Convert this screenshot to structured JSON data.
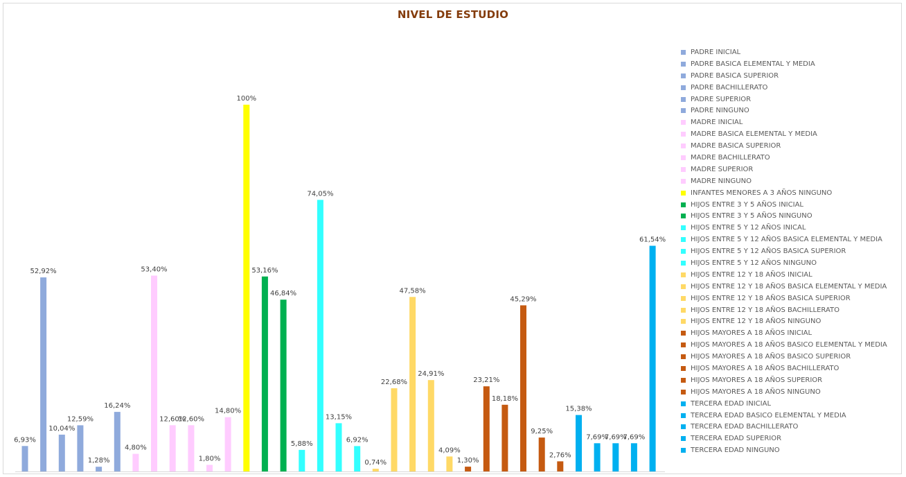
{
  "chart_data": {
    "type": "bar",
    "title": "NIVEL DE ESTUDIO",
    "categories": [
      "PADRE INICIAL",
      "PADRE BASICA ELEMENTAL Y MEDIA",
      "PADRE BASICA SUPERIOR",
      "PADRE BACHILLERATO",
      "PADRE SUPERIOR",
      "PADRE NINGUNO",
      "MADRE INICIAL",
      "MADRE BASICA ELEMENTAL Y MEDIA",
      "MADRE BASICA SUPERIOR",
      "MADRE BACHILLERATO",
      "MADRE SUPERIOR",
      "MADRE NINGUNO",
      "INFANTES MENORES A 3 AÑOS NINGUNO",
      "HIJOS ENTRE 3 Y 5 AÑOS  INICIAL",
      "HIJOS ENTRE 3 Y 5 AÑOS  NINGUNO",
      "HIJOS ENTRE 5 Y 12 AÑOS INICAL",
      "HIJOS ENTRE 5 Y 12 AÑOS BASICA ELEMENTAL Y MEDIA",
      "HIJOS ENTRE 5 Y 12 AÑOS BASICA SUPERIOR",
      "HIJOS ENTRE 5 Y 12 AÑOS NINGUNO",
      "HIJOS ENTRE 12 Y 18 AÑOS  INICIAL",
      "HIJOS ENTRE 12 Y 18 AÑOS BASICA ELEMENTAL Y MEDIA",
      "HIJOS ENTRE 12 Y 18 AÑOS BASICA SUPERIOR",
      "HIJOS ENTRE 12 Y 18 AÑOS BACHILLERATO",
      "HIJOS ENTRE 12 Y 18 AÑOS NINGUNO",
      "HIJOS MAYORES A 18 AÑOS  INICIAL",
      "HIJOS MAYORES A 18 AÑOS  BASICO ELEMENTAL Y MEDIA",
      "HIJOS MAYORES A 18 AÑOS  BASICO SUPERIOR",
      "HIJOS MAYORES A 18 AÑOS  BACHILLERATO",
      "HIJOS MAYORES A 18 AÑOS  SUPERIOR",
      "HIJOS MAYORES A 18 AÑOS  NINGUNO",
      "TERCERA EDAD INICIAL",
      "TERCERA EDAD BASICO ELEMENTAL Y MEDIA",
      "TERCERA EDAD BACHILLERATO",
      "TERCERA EDAD SUPERIOR",
      "TERCERA EDAD NINGUNO"
    ],
    "values": [
      6.93,
      52.92,
      10.04,
      12.59,
      1.28,
      16.24,
      4.8,
      53.4,
      12.6,
      12.6,
      1.8,
      14.8,
      100,
      53.16,
      46.84,
      5.88,
      74.05,
      13.15,
      6.92,
      0.74,
      22.68,
      47.58,
      24.91,
      4.09,
      1.3,
      23.21,
      18.18,
      45.29,
      9.25,
      2.76,
      15.38,
      7.69,
      7.69,
      7.69,
      61.54
    ],
    "labels": [
      "6,93%",
      "52,92%",
      "10,04%",
      "12,59%",
      "1,28%",
      "16,24%",
      "4,80%",
      "53,40%",
      "12,60%",
      "12,60%",
      "1,80%",
      "14,80%",
      "100%",
      "53,16%",
      "46,84%",
      "5,88%",
      "74,05%",
      "13,15%",
      "6,92%",
      "0,74%",
      "22,68%",
      "47,58%",
      "24,91%",
      "4,09%",
      "1,30%",
      "23,21%",
      "18,18%",
      "45,29%",
      "9,25%",
      "2,76%",
      "15,38%",
      "7,69%",
      "7,69%",
      "7,69%",
      "61,54%"
    ],
    "colors": [
      "#8faadc",
      "#8faadc",
      "#8faadc",
      "#8faadc",
      "#8faadc",
      "#8faadc",
      "#ffccff",
      "#ffccff",
      "#ffccff",
      "#ffccff",
      "#ffccff",
      "#ffccff",
      "#ffff00",
      "#00b050",
      "#00b050",
      "#33ffff",
      "#33ffff",
      "#33ffff",
      "#33ffff",
      "#ffd966",
      "#ffd966",
      "#ffd966",
      "#ffd966",
      "#ffd966",
      "#c55a11",
      "#c55a11",
      "#c55a11",
      "#c55a11",
      "#c55a11",
      "#c55a11",
      "#00b0f0",
      "#00b0f0",
      "#00b0f0",
      "#00b0f0",
      "#00b0f0"
    ],
    "ylim": [
      0,
      100
    ],
    "grid": false,
    "legend_position": "right"
  }
}
